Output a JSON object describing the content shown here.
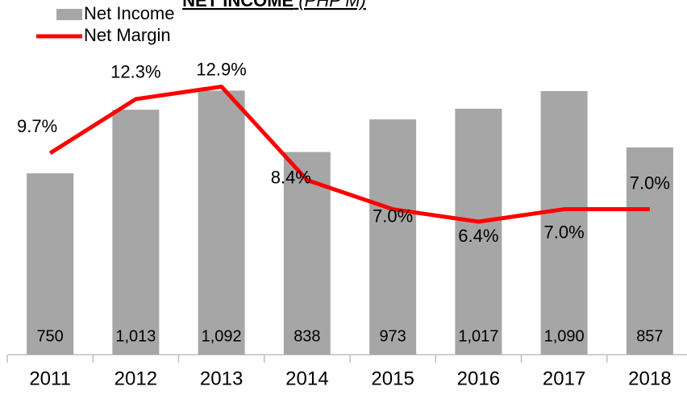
{
  "chart_data": {
    "type": "bar_line",
    "title": "NET INCOME",
    "subtitle": "(PHP M)",
    "categories": [
      "2011",
      "2012",
      "2013",
      "2014",
      "2015",
      "2016",
      "2017",
      "2018"
    ],
    "series": [
      {
        "name": "Net Income",
        "type": "bar",
        "color": "#a6a6a6",
        "values": [
          750,
          1013,
          1092,
          838,
          973,
          1017,
          1090,
          857
        ],
        "value_labels": [
          "750",
          "1,013",
          "1,092",
          "838",
          "973",
          "1,017",
          "1,090",
          "857"
        ]
      },
      {
        "name": "Net Margin",
        "type": "line",
        "axis": "y2",
        "color": "#ff0000",
        "values": [
          9.7,
          12.3,
          12.9,
          8.4,
          7.0,
          6.4,
          7.0,
          7.0
        ],
        "value_labels": [
          "9.7%",
          "12.3%",
          "12.9%",
          "8.4%",
          "7.0%",
          "6.4%",
          "7.0%",
          "7.0%"
        ]
      }
    ],
    "ylim": [
      0,
      1160
    ],
    "y2lim": [
      0,
      13.5
    ],
    "legend": "top-left"
  }
}
